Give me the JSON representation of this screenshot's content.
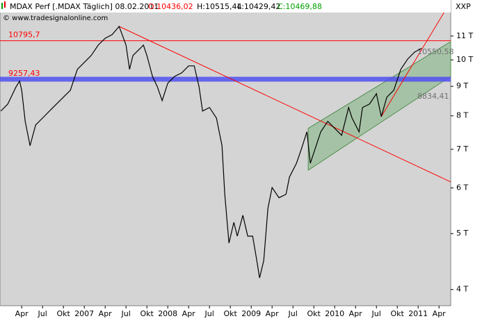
{
  "chart_data": {
    "type": "line",
    "header": {
      "title": "MDAX Perf [.MDAX  Täglich] 08.02.2011",
      "open": "O:10436,02",
      "high": "H:10515,44",
      "low": "L:10429,42",
      "close": "C:10469,88",
      "copyright": "© www.tradesignalonline.com"
    },
    "axis_title": "XXP",
    "log_scale": true,
    "ylim": [
      3750,
      12700
    ],
    "yticks": [
      {
        "value": 4000,
        "label": "4 T"
      },
      {
        "value": 5000,
        "label": "5 T"
      },
      {
        "value": 6000,
        "label": "6 T"
      },
      {
        "value": 7000,
        "label": "7 T"
      },
      {
        "value": 8000,
        "label": "8 T"
      },
      {
        "value": 9000,
        "label": "9 T"
      },
      {
        "value": 10000,
        "label": "10 T"
      },
      {
        "value": 11000,
        "label": "11 T"
      }
    ],
    "xlim": [
      2005.99,
      2011.39
    ],
    "xticks": [
      {
        "value": 2006.25,
        "label": "Apr"
      },
      {
        "value": 2006.5,
        "label": "Jul"
      },
      {
        "value": 2006.75,
        "label": "Okt"
      },
      2007,
      {
        "value": 2007.25,
        "label": "Apr"
      },
      {
        "value": 2007.5,
        "label": "Jul"
      },
      {
        "value": 2007.75,
        "label": "Okt"
      },
      2008,
      {
        "value": 2008.25,
        "label": "Apr"
      },
      {
        "value": 2008.5,
        "label": "Jul"
      },
      {
        "value": 2008.75,
        "label": "Okt"
      },
      2009,
      {
        "value": 2009.25,
        "label": "Apr"
      },
      {
        "value": 2009.5,
        "label": "Jul"
      },
      {
        "value": 2009.75,
        "label": "Okt"
      },
      2010,
      {
        "value": 2010.25,
        "label": "Apr"
      },
      {
        "value": 2010.5,
        "label": "Jul"
      },
      {
        "value": 2010.75,
        "label": "Okt"
      },
      2011,
      {
        "value": 2011.25,
        "label": "Apr"
      }
    ],
    "series": [
      {
        "name": "MDAX Perf",
        "color": "#000000",
        "x": [
          2006.0,
          2006.083,
          2006.183,
          2006.225,
          2006.25,
          2006.292,
          2006.35,
          2006.417,
          2006.5,
          2006.625,
          2006.75,
          2006.833,
          2006.917,
          2007.0,
          2007.083,
          2007.167,
          2007.25,
          2007.333,
          2007.417,
          2007.5,
          2007.542,
          2007.583,
          2007.667,
          2007.708,
          2007.75,
          2007.817,
          2007.875,
          2007.933,
          2008.0,
          2008.083,
          2008.167,
          2008.25,
          2008.317,
          2008.375,
          2008.417,
          2008.5,
          2008.583,
          2008.65,
          2008.683,
          2008.733,
          2008.792,
          2008.833,
          2008.9,
          2008.958,
          2009.017,
          2009.067,
          2009.1,
          2009.15,
          2009.2,
          2009.25,
          2009.333,
          2009.417,
          2009.458,
          2009.542,
          2009.6,
          2009.667,
          2009.708,
          2009.75,
          2009.833,
          2009.917,
          2010.0,
          2010.083,
          2010.167,
          2010.208,
          2010.292,
          2010.333,
          2010.417,
          2010.5,
          2010.558,
          2010.625,
          2010.708,
          2010.792,
          2010.875,
          2010.958,
          2011.042
        ],
        "values": [
          8155,
          8385,
          8985,
          9190,
          8860,
          7825,
          7100,
          7715,
          7930,
          8270,
          8620,
          8860,
          9630,
          9900,
          10180,
          10610,
          10900,
          11060,
          11430,
          10610,
          9630,
          10180,
          10460,
          10610,
          10180,
          9365,
          8985,
          8500,
          9110,
          9365,
          9495,
          9765,
          9765,
          8985,
          8155,
          8270,
          7930,
          7100,
          5850,
          4815,
          5230,
          4950,
          5380,
          4950,
          4950,
          4490,
          4190,
          4490,
          5530,
          6010,
          5770,
          5850,
          6265,
          6620,
          7000,
          7505,
          6620,
          6905,
          7505,
          7825,
          7610,
          7400,
          8270,
          7930,
          7505,
          8270,
          8385,
          8740,
          7975,
          8620,
          8860,
          9630,
          10035,
          10320,
          10470
        ]
      }
    ],
    "levels": [
      {
        "value": 10795.7,
        "label": "10795,7",
        "color": "#ff0000",
        "width": 1
      },
      {
        "value": 9257.43,
        "label": "9257,43",
        "color": "#5050f0",
        "width": 7
      }
    ],
    "annotations": [
      {
        "value": 10550.58,
        "label": "10550,58"
      },
      {
        "value": 8834.41,
        "label": "8834,41"
      }
    ],
    "trendlines": [
      {
        "x": [
          2007.417,
          2011.39
        ],
        "values": [
          11430,
          6145
        ],
        "color": "#ff0000"
      },
      {
        "x": [
          2010.558,
          2011.39
        ],
        "values": [
          7975,
          12630
        ],
        "color": "#ff0000"
      }
    ],
    "channel": {
      "x": [
        2009.683,
        2011.39
      ],
      "upper": [
        7610,
        10755
      ],
      "lower": [
        6440,
        9365
      ],
      "color": "#7fb27f"
    }
  }
}
